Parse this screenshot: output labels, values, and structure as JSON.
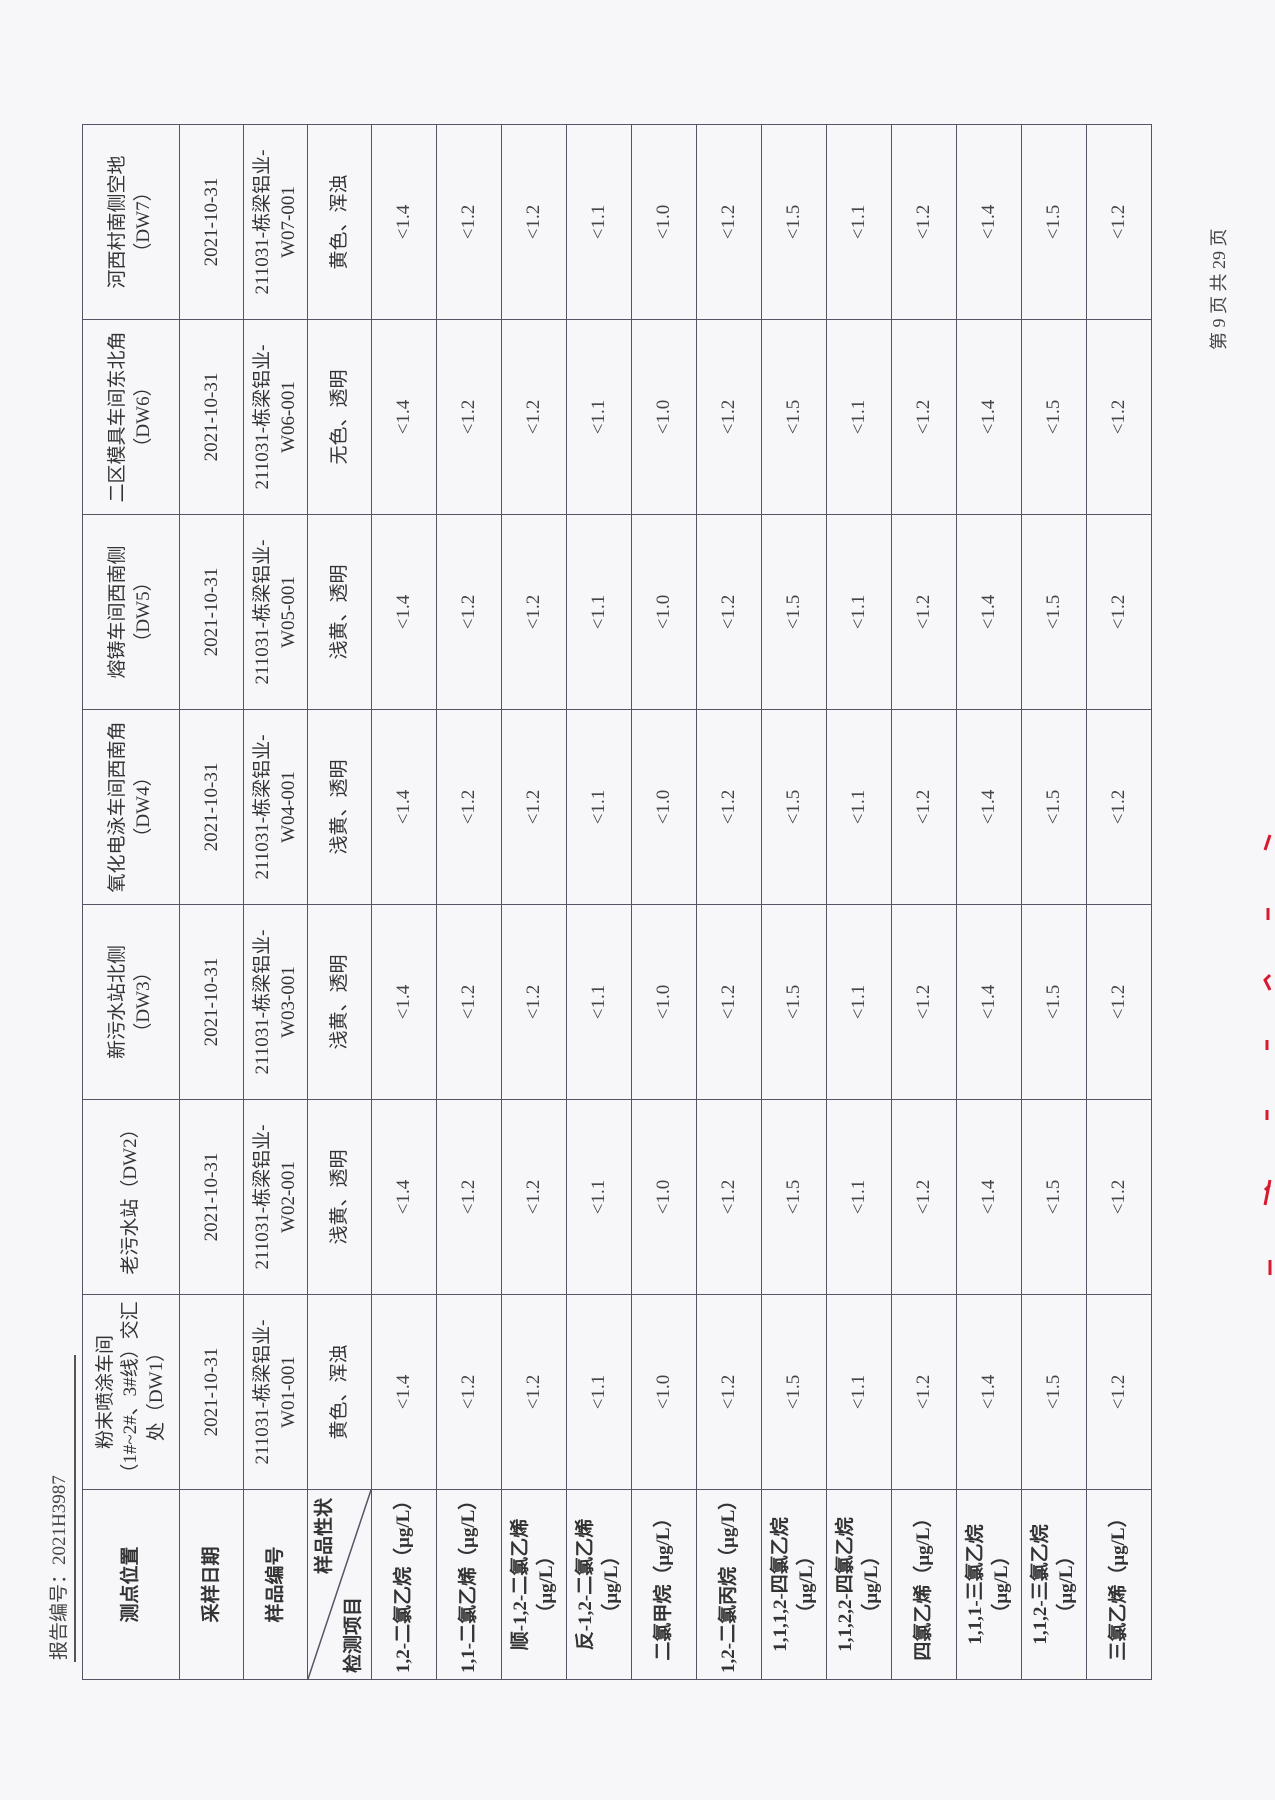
{
  "header": {
    "report_number": "报告编号：2021H3987",
    "page_info": "第 9 页 共 29 页"
  },
  "table": {
    "row_labels": {
      "location": "测点位置",
      "date": "采样日期",
      "sample_id": "样品编号",
      "appearance": "样品性状",
      "item": "检测项目"
    },
    "columns": [
      {
        "location": "粉末喷涂车间（1#~2#、3#线）交汇处（DW1）",
        "date": "2021-10-31",
        "sample_id": "211031-栋梁铝业-W01-001",
        "appearance": "黄色、浑浊"
      },
      {
        "location": "老污水站（DW2）",
        "date": "2021-10-31",
        "sample_id": "211031-栋梁铝业-W02-001",
        "appearance": "浅黄、透明"
      },
      {
        "location": "新污水站北侧（DW3）",
        "date": "2021-10-31",
        "sample_id": "211031-栋梁铝业-W03-001",
        "appearance": "浅黄、透明"
      },
      {
        "location": "氧化电泳车间西南角（DW4）",
        "date": "2021-10-31",
        "sample_id": "211031-栋梁铝业-W04-001",
        "appearance": "浅黄、透明"
      },
      {
        "location": "熔铸车间西南侧（DW5）",
        "date": "2021-10-31",
        "sample_id": "211031-栋梁铝业-W05-001",
        "appearance": "浅黄、透明"
      },
      {
        "location": "二区模具车间东北角（DW6）",
        "date": "2021-10-31",
        "sample_id": "211031-栋梁铝业-W06-001",
        "appearance": "无色、透明"
      },
      {
        "location": "河西村南侧空地（DW7）",
        "date": "2021-10-31",
        "sample_id": "211031-栋梁铝业-W07-001",
        "appearance": "黄色、浑浊"
      }
    ],
    "rows": [
      {
        "item": "1,2-二氯乙烷（μg/L）",
        "values": [
          "<1.4",
          "<1.4",
          "<1.4",
          "<1.4",
          "<1.4",
          "<1.4",
          "<1.4"
        ]
      },
      {
        "item": "1,1-二氯乙烯（μg/L）",
        "values": [
          "<1.2",
          "<1.2",
          "<1.2",
          "<1.2",
          "<1.2",
          "<1.2",
          "<1.2"
        ]
      },
      {
        "item": "顺-1,2-二氯乙烯（μg/L）",
        "values": [
          "<1.2",
          "<1.2",
          "<1.2",
          "<1.2",
          "<1.2",
          "<1.2",
          "<1.2"
        ]
      },
      {
        "item": "反-1,2-二氯乙烯（μg/L）",
        "values": [
          "<1.1",
          "<1.1",
          "<1.1",
          "<1.1",
          "<1.1",
          "<1.1",
          "<1.1"
        ]
      },
      {
        "item": "二氯甲烷（μg/L）",
        "values": [
          "<1.0",
          "<1.0",
          "<1.0",
          "<1.0",
          "<1.0",
          "<1.0",
          "<1.0"
        ]
      },
      {
        "item": "1,2-二氯丙烷（μg/L）",
        "values": [
          "<1.2",
          "<1.2",
          "<1.2",
          "<1.2",
          "<1.2",
          "<1.2",
          "<1.2"
        ]
      },
      {
        "item": "1,1,1,2-四氯乙烷（μg/L）",
        "values": [
          "<1.5",
          "<1.5",
          "<1.5",
          "<1.5",
          "<1.5",
          "<1.5",
          "<1.5"
        ]
      },
      {
        "item": "1,1,2,2-四氯乙烷（μg/L）",
        "values": [
          "<1.1",
          "<1.1",
          "<1.1",
          "<1.1",
          "<1.1",
          "<1.1",
          "<1.1"
        ]
      },
      {
        "item": "四氯乙烯（μg/L）",
        "values": [
          "<1.2",
          "<1.2",
          "<1.2",
          "<1.2",
          "<1.2",
          "<1.2",
          "<1.2"
        ]
      },
      {
        "item": "1,1,1-三氯乙烷（μg/L）",
        "values": [
          "<1.4",
          "<1.4",
          "<1.4",
          "<1.4",
          "<1.4",
          "<1.4",
          "<1.4"
        ]
      },
      {
        "item": "1,1,2-三氯乙烷（μg/L）",
        "values": [
          "<1.5",
          "<1.5",
          "<1.5",
          "<1.5",
          "<1.5",
          "<1.5",
          "<1.5"
        ]
      },
      {
        "item": "三氯乙烯（μg/L）",
        "values": [
          "<1.2",
          "<1.2",
          "<1.2",
          "<1.2",
          "<1.2",
          "<1.2",
          "<1.2"
        ]
      }
    ]
  },
  "colors": {
    "stamp": "#d8192f",
    "paper": "#f7f7fa",
    "rule": "#556"
  }
}
